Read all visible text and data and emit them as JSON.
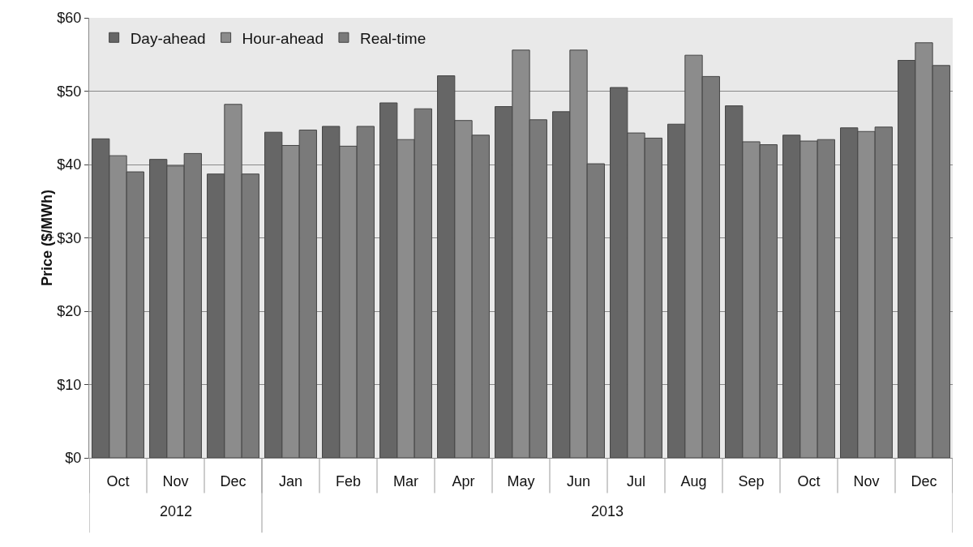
{
  "chart_data": {
    "type": "bar",
    "ylabel": "Price ($/MWh)",
    "categories": [
      "Oct",
      "Nov",
      "Dec",
      "Jan",
      "Feb",
      "Mar",
      "Apr",
      "May",
      "Jun",
      "Jul",
      "Aug",
      "Sep",
      "Oct",
      "Nov",
      "Dec"
    ],
    "series": [
      {
        "name": "Day-ahead",
        "color": "#666666",
        "values": [
          43.5,
          40.7,
          38.7,
          44.4,
          45.2,
          48.4,
          52.1,
          47.9,
          47.2,
          50.5,
          45.5,
          48.0,
          44.0,
          45.0,
          54.2
        ]
      },
      {
        "name": "Hour-ahead",
        "color": "#8c8c8c",
        "values": [
          41.2,
          39.8,
          48.2,
          42.6,
          42.5,
          43.4,
          46.0,
          55.6,
          55.6,
          44.3,
          54.9,
          43.1,
          43.2,
          44.5,
          56.6
        ]
      },
      {
        "name": "Real-time",
        "color": "#7a7a7a",
        "values": [
          39.0,
          41.5,
          38.7,
          44.7,
          45.2,
          47.6,
          44.0,
          46.1,
          40.1,
          43.6,
          52.0,
          42.7,
          43.4,
          45.1,
          53.5
        ]
      }
    ],
    "ylim": [
      0,
      60
    ],
    "yticks": [
      {
        "value": 0,
        "label": "$0"
      },
      {
        "value": 10,
        "label": "$10"
      },
      {
        "value": 20,
        "label": "$20"
      },
      {
        "value": 30,
        "label": "$30"
      },
      {
        "value": 40,
        "label": "$40"
      },
      {
        "value": 50,
        "label": "$50"
      },
      {
        "value": 60,
        "label": "$60"
      }
    ],
    "annotations": [
      "2012",
      "2013"
    ],
    "grid": "y",
    "legend": "top left"
  }
}
